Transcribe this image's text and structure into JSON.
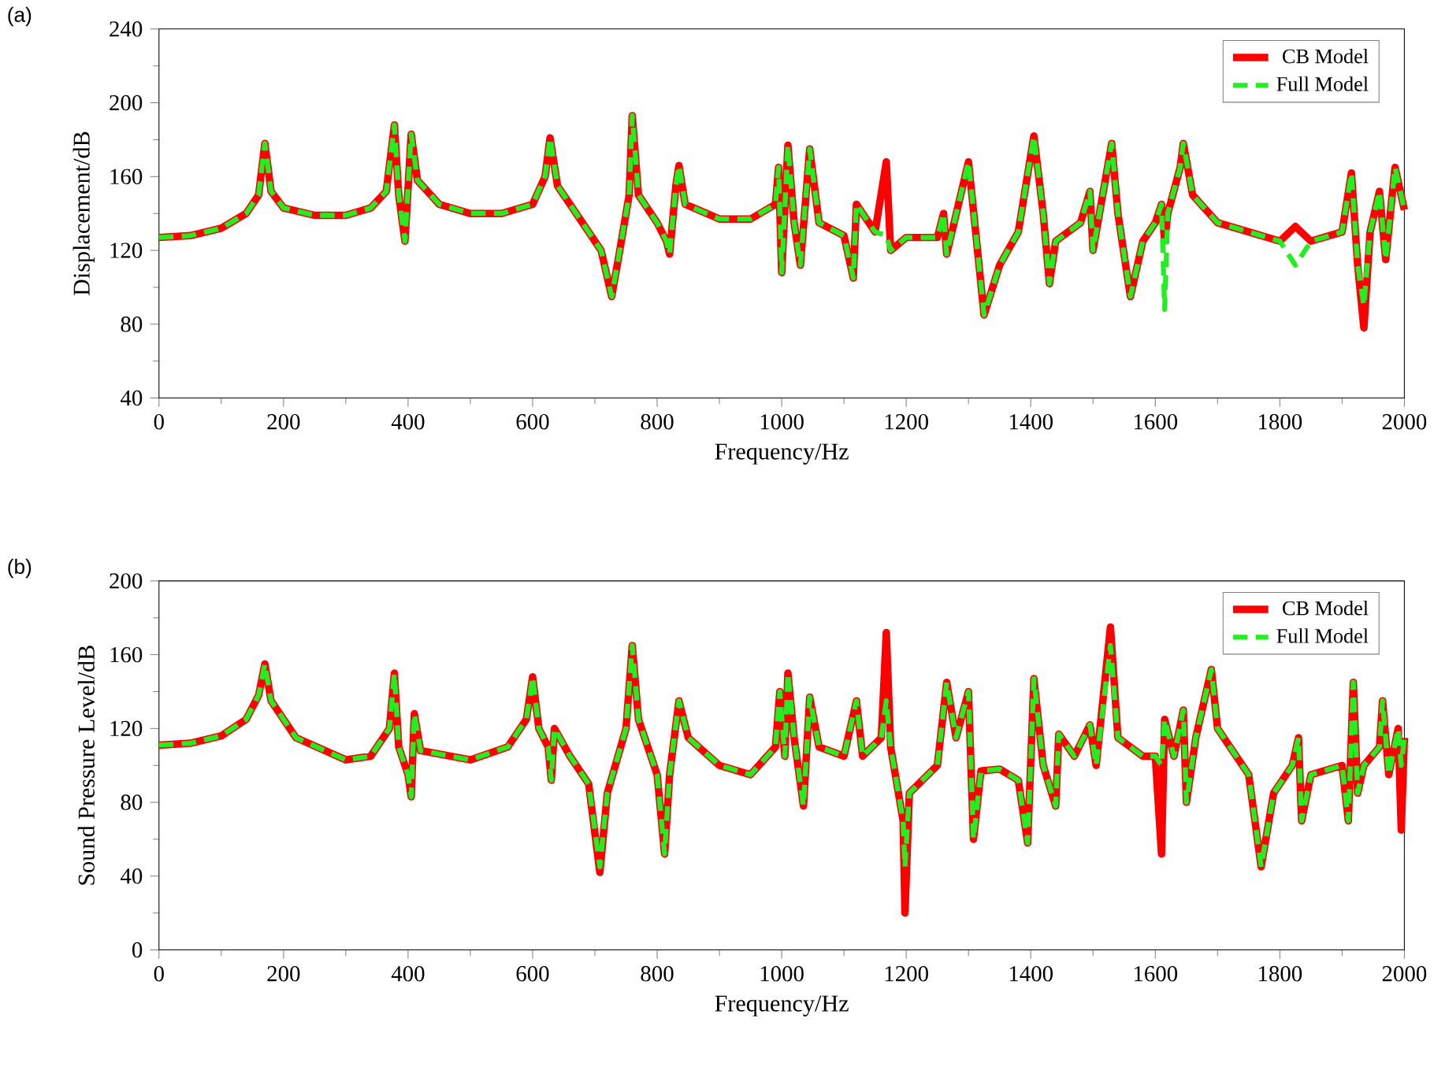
{
  "chart_data": [
    {
      "type": "line",
      "annotations": [
        "(a)"
      ],
      "xlabel": "Frequency/Hz",
      "ylabel": "Displacement/dB",
      "xlim": [
        0,
        2000
      ],
      "xticks": [
        0,
        200,
        400,
        600,
        800,
        1000,
        1200,
        1400,
        1600,
        1800,
        2000
      ],
      "ylim": [
        40,
        240
      ],
      "yticks": [
        40,
        80,
        120,
        160,
        200,
        240
      ],
      "legend": "top right",
      "x": [
        0,
        50,
        100,
        140,
        160,
        170,
        180,
        200,
        250,
        300,
        340,
        365,
        378,
        385,
        395,
        405,
        415,
        450,
        500,
        550,
        600,
        620,
        628,
        640,
        680,
        710,
        727,
        740,
        755,
        760,
        770,
        800,
        815,
        820,
        830,
        835,
        845,
        900,
        950,
        990,
        995,
        1000,
        1010,
        1020,
        1030,
        1045,
        1060,
        1100,
        1115,
        1120,
        1150,
        1168,
        1175,
        1200,
        1250,
        1260,
        1265,
        1300,
        1310,
        1325,
        1350,
        1380,
        1405,
        1420,
        1430,
        1440,
        1480,
        1495,
        1500,
        1530,
        1540,
        1560,
        1580,
        1600,
        1610,
        1615,
        1620,
        1640,
        1645,
        1660,
        1700,
        1800,
        1825,
        1850,
        1900,
        1915,
        1925,
        1935,
        1945,
        1960,
        1970,
        1985,
        2000
      ],
      "series": [
        {
          "name": "CB Model",
          "color": "#ff0000",
          "line_style": "solid",
          "values": [
            127,
            128,
            132,
            140,
            150,
            178,
            152,
            143,
            139,
            139,
            143,
            152,
            188,
            150,
            125,
            183,
            158,
            145,
            140,
            140,
            145,
            160,
            181,
            155,
            135,
            120,
            95,
            120,
            150,
            193,
            150,
            135,
            125,
            118,
            155,
            166,
            145,
            137,
            137,
            145,
            165,
            108,
            177,
            135,
            112,
            175,
            135,
            128,
            105,
            145,
            130,
            168,
            120,
            127,
            127,
            140,
            118,
            168,
            135,
            85,
            112,
            130,
            182,
            140,
            102,
            125,
            135,
            152,
            120,
            178,
            140,
            95,
            125,
            135,
            145,
            125,
            140,
            165,
            178,
            150,
            135,
            125,
            133,
            125,
            130,
            162,
            112,
            78,
            130,
            152,
            115,
            165,
            142
          ]
        },
        {
          "name": "Full Model",
          "color": "#22ee22",
          "line_style": "dashed",
          "values": [
            127,
            128,
            132,
            140,
            150,
            178,
            152,
            143,
            139,
            139,
            143,
            152,
            188,
            150,
            125,
            183,
            158,
            145,
            140,
            140,
            145,
            160,
            181,
            155,
            135,
            120,
            95,
            120,
            150,
            193,
            150,
            135,
            125,
            118,
            155,
            166,
            145,
            137,
            137,
            145,
            165,
            108,
            177,
            135,
            112,
            175,
            135,
            128,
            105,
            145,
            130,
            128,
            120,
            127,
            127,
            140,
            118,
            168,
            135,
            85,
            112,
            130,
            182,
            140,
            102,
            125,
            135,
            152,
            120,
            178,
            140,
            95,
            125,
            135,
            145,
            88,
            140,
            165,
            178,
            150,
            135,
            125,
            112,
            125,
            130,
            162,
            112,
            90,
            130,
            152,
            115,
            165,
            142
          ]
        }
      ]
    },
    {
      "type": "line",
      "annotations": [
        "(b)"
      ],
      "xlabel": "Frequency/Hz",
      "ylabel": "Sound Pressure Level/dB",
      "xlim": [
        0,
        2000
      ],
      "xticks": [
        0,
        200,
        400,
        600,
        800,
        1000,
        1200,
        1400,
        1600,
        1800,
        2000
      ],
      "ylim": [
        0,
        200
      ],
      "yticks": [
        0,
        40,
        80,
        120,
        160,
        200
      ],
      "legend": "top right",
      "x": [
        0,
        50,
        100,
        140,
        160,
        170,
        180,
        220,
        300,
        340,
        370,
        378,
        385,
        400,
        405,
        410,
        420,
        500,
        560,
        590,
        600,
        610,
        625,
        630,
        635,
        660,
        690,
        708,
        720,
        750,
        760,
        770,
        800,
        812,
        820,
        835,
        850,
        900,
        950,
        990,
        997,
        1005,
        1010,
        1020,
        1035,
        1045,
        1060,
        1100,
        1120,
        1130,
        1160,
        1168,
        1175,
        1195,
        1198,
        1205,
        1250,
        1265,
        1280,
        1300,
        1308,
        1320,
        1350,
        1380,
        1395,
        1405,
        1420,
        1440,
        1445,
        1470,
        1495,
        1505,
        1528,
        1540,
        1580,
        1600,
        1610,
        1615,
        1630,
        1645,
        1650,
        1665,
        1690,
        1700,
        1750,
        1770,
        1790,
        1820,
        1830,
        1835,
        1850,
        1900,
        1910,
        1918,
        1925,
        1935,
        1960,
        1965,
        1975,
        1990,
        1995,
        2000
      ],
      "series": [
        {
          "name": "CB Model",
          "color": "#ff0000",
          "line_style": "solid",
          "values": [
            111,
            112,
            116,
            125,
            138,
            155,
            135,
            115,
            103,
            105,
            120,
            150,
            110,
            95,
            83,
            128,
            108,
            103,
            110,
            125,
            148,
            120,
            110,
            92,
            120,
            105,
            90,
            42,
            85,
            120,
            165,
            125,
            95,
            52,
            95,
            135,
            115,
            100,
            95,
            110,
            140,
            105,
            150,
            115,
            78,
            137,
            110,
            105,
            135,
            105,
            115,
            172,
            110,
            70,
            20,
            85,
            100,
            145,
            115,
            140,
            60,
            97,
            98,
            92,
            58,
            147,
            100,
            78,
            117,
            105,
            122,
            100,
            175,
            115,
            105,
            105,
            52,
            125,
            105,
            130,
            80,
            115,
            152,
            120,
            95,
            45,
            85,
            100,
            115,
            70,
            95,
            100,
            70,
            145,
            85,
            100,
            110,
            135,
            95,
            120,
            65,
            115
          ]
        },
        {
          "name": "Full Model",
          "color": "#22ee22",
          "line_style": "dashed",
          "values": [
            111,
            112,
            116,
            125,
            138,
            155,
            135,
            115,
            103,
            105,
            120,
            150,
            110,
            95,
            83,
            128,
            108,
            103,
            110,
            125,
            148,
            120,
            110,
            92,
            120,
            105,
            90,
            45,
            85,
            120,
            165,
            125,
            95,
            52,
            95,
            135,
            115,
            100,
            95,
            110,
            140,
            105,
            150,
            115,
            78,
            137,
            110,
            105,
            135,
            105,
            115,
            135,
            110,
            70,
            45,
            85,
            100,
            145,
            115,
            140,
            60,
            97,
            98,
            92,
            58,
            147,
            100,
            78,
            117,
            105,
            122,
            100,
            165,
            115,
            105,
            105,
            100,
            125,
            105,
            130,
            80,
            115,
            152,
            120,
            95,
            45,
            85,
            100,
            115,
            70,
            95,
            100,
            70,
            145,
            85,
            100,
            110,
            135,
            95,
            120,
            100,
            115
          ]
        }
      ]
    }
  ]
}
